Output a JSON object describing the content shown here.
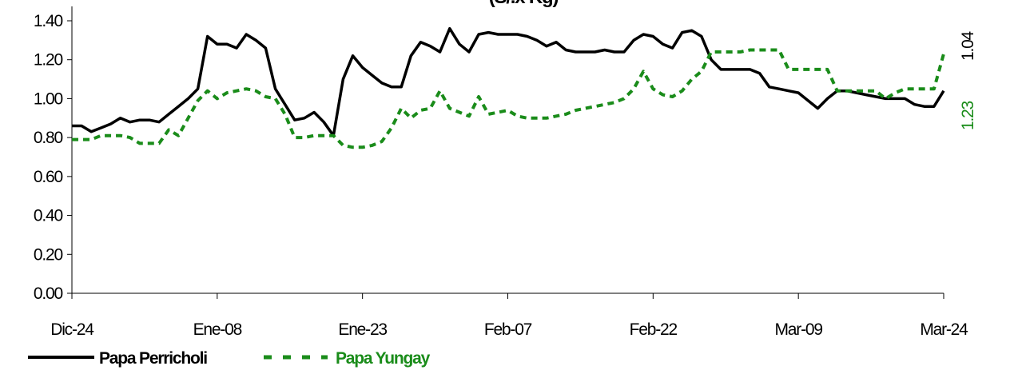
{
  "chart_data": {
    "type": "line",
    "title": "(S/.x Kg)",
    "categories": [
      "Dic-24",
      null,
      null,
      null,
      null,
      null,
      null,
      null,
      null,
      null,
      null,
      null,
      null,
      null,
      null,
      "Ene-08",
      null,
      null,
      null,
      null,
      null,
      null,
      null,
      null,
      null,
      null,
      null,
      null,
      null,
      null,
      "Ene-23",
      null,
      null,
      null,
      null,
      null,
      null,
      null,
      null,
      null,
      null,
      null,
      null,
      null,
      null,
      "Feb-07",
      null,
      null,
      null,
      null,
      null,
      null,
      null,
      null,
      null,
      null,
      null,
      null,
      null,
      null,
      "Feb-22",
      null,
      null,
      null,
      null,
      null,
      null,
      null,
      null,
      null,
      null,
      null,
      null,
      null,
      null,
      "Mar-09",
      null,
      null,
      null,
      null,
      null,
      null,
      null,
      null,
      null,
      null,
      null,
      null,
      null,
      null,
      "Mar-24"
    ],
    "series": [
      {
        "name": "Papa Perricholi",
        "color": "#000000",
        "dash": false,
        "values": [
          0.86,
          0.86,
          0.83,
          0.85,
          0.87,
          0.9,
          0.88,
          0.89,
          0.89,
          0.88,
          0.92,
          0.96,
          1.0,
          1.05,
          1.32,
          1.28,
          1.28,
          1.26,
          1.33,
          1.3,
          1.26,
          1.05,
          0.97,
          0.89,
          0.9,
          0.93,
          0.88,
          0.81,
          1.1,
          1.22,
          1.16,
          1.12,
          1.08,
          1.06,
          1.06,
          1.22,
          1.29,
          1.27,
          1.24,
          1.36,
          1.28,
          1.24,
          1.33,
          1.34,
          1.33,
          1.33,
          1.33,
          1.32,
          1.3,
          1.27,
          1.29,
          1.25,
          1.24,
          1.24,
          1.24,
          1.25,
          1.24,
          1.24,
          1.3,
          1.33,
          1.32,
          1.28,
          1.26,
          1.34,
          1.35,
          1.32,
          1.2,
          1.15,
          1.15,
          1.15,
          1.15,
          1.13,
          1.06,
          1.05,
          1.04,
          1.03,
          0.99,
          0.95,
          1.0,
          1.04,
          1.04,
          1.03,
          1.02,
          1.01,
          1.0,
          1.0,
          1.0,
          0.97,
          0.96,
          0.96,
          1.04
        ]
      },
      {
        "name": "Papa Yungay",
        "color": "#1a8c1a",
        "dash": true,
        "values": [
          0.79,
          0.79,
          0.79,
          0.81,
          0.81,
          0.81,
          0.8,
          0.77,
          0.77,
          0.77,
          0.84,
          0.81,
          0.9,
          0.99,
          1.04,
          1.0,
          1.03,
          1.04,
          1.05,
          1.04,
          1.01,
          1.0,
          0.92,
          0.8,
          0.8,
          0.81,
          0.81,
          0.81,
          0.76,
          0.75,
          0.75,
          0.76,
          0.78,
          0.85,
          0.95,
          0.9,
          0.94,
          0.95,
          1.04,
          0.95,
          0.93,
          0.91,
          1.01,
          0.92,
          0.93,
          0.94,
          0.91,
          0.9,
          0.9,
          0.9,
          0.91,
          0.92,
          0.94,
          0.95,
          0.96,
          0.97,
          0.98,
          1.0,
          1.05,
          1.14,
          1.05,
          1.02,
          1.01,
          1.04,
          1.1,
          1.14,
          1.24,
          1.24,
          1.24,
          1.24,
          1.25,
          1.25,
          1.25,
          1.25,
          1.15,
          1.15,
          1.15,
          1.15,
          1.15,
          1.04,
          1.04,
          1.04,
          1.04,
          1.04,
          1.0,
          1.03,
          1.05,
          1.05,
          1.05,
          1.05,
          1.23
        ]
      }
    ],
    "annotations": [
      {
        "text": "1.04",
        "color": "#000000"
      },
      {
        "text": "1.23",
        "color": "#1a8c1a"
      }
    ],
    "ylim": [
      0,
      1.4
    ],
    "yticks": [
      {
        "value": 0,
        "label": "0.00"
      },
      {
        "value": 0.2,
        "label": "0.20"
      },
      {
        "value": 0.4,
        "label": "0.40"
      },
      {
        "value": 0.6,
        "label": "0.60"
      },
      {
        "value": 0.8,
        "label": "0.80"
      },
      {
        "value": 1.0,
        "label": "1.00"
      },
      {
        "value": 1.2,
        "label": "1.20"
      },
      {
        "value": 1.4,
        "label": "1.40"
      }
    ],
    "grid": false,
    "legend": "bottom-left"
  }
}
